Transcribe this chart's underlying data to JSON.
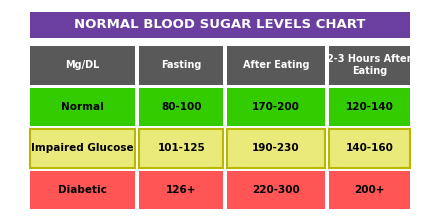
{
  "title": "NORMAL BLOOD SUGAR LEVELS CHART",
  "title_bg": "#6b3fa0",
  "title_color": "#ffffff",
  "header_bg": "#595959",
  "header_color": "#ffffff",
  "headers": [
    "Mg/DL",
    "Fasting",
    "After Eating",
    "2-3 Hours After\nEating"
  ],
  "rows": [
    {
      "cells": [
        "Normal",
        "80-100",
        "170-200",
        "120-140"
      ],
      "bg": "#33cc00",
      "text_color": "#000000",
      "border_color": "#33cc00"
    },
    {
      "cells": [
        "Impaired Glucose",
        "101-125",
        "190-230",
        "140-160"
      ],
      "bg": "#eaea7a",
      "text_color": "#000000",
      "border_color": "#b8b800"
    },
    {
      "cells": [
        "Diabetic",
        "126+",
        "220-300",
        "200+"
      ],
      "bg": "#ff5555",
      "text_color": "#000000",
      "border_color": "#ff5555"
    }
  ],
  "fig_bg": "#ffffff",
  "fig_w": 4.4,
  "fig_h": 2.17,
  "dpi": 100
}
